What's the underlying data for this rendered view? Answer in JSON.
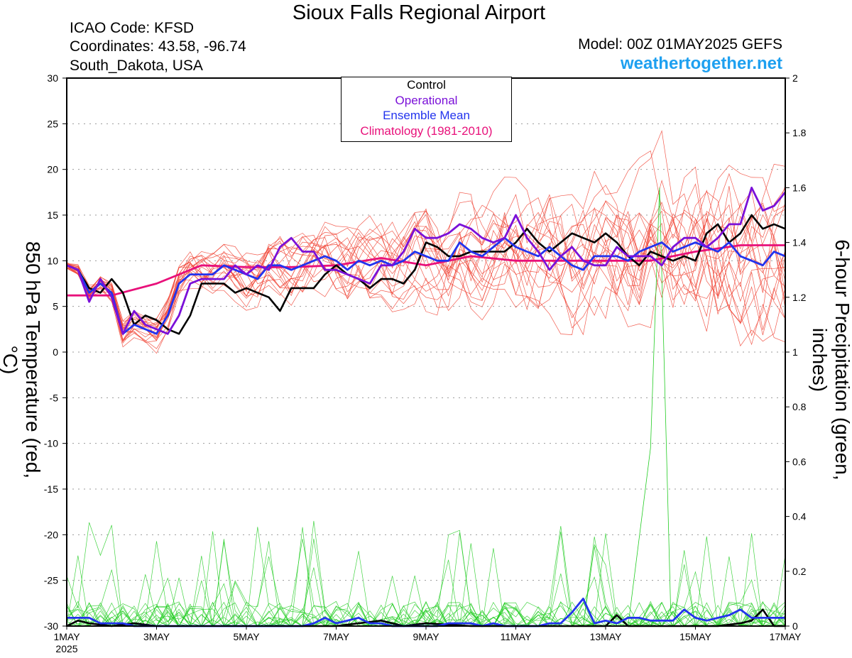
{
  "header": {
    "title": "Sioux Falls Regional Airport",
    "icao": "ICAO Code: KFSD",
    "coords": "Coordinates: 43.58, -96.74",
    "region": "South_Dakota, USA",
    "model": "Model: 00Z 01MAY2025 GEFS",
    "site": "weathertogether.net"
  },
  "colors": {
    "control": "#000000",
    "operational": "#7a10d8",
    "ensemble_mean": "#2233ee",
    "climatology": "#e8107a",
    "members_temp": "#f04030",
    "members_precip": "#22cc22",
    "site": "#1ea0f0"
  },
  "chart_data": {
    "type": "line",
    "title": "Sioux Falls Regional Airport",
    "ylabel": "850 hPa Temperature (red, °C)",
    "y2label": "6-hour Precipitation (green, inches)",
    "ylim": [
      -30,
      30
    ],
    "y2lim": [
      0,
      2
    ],
    "grid": true,
    "legend_position": "top-center",
    "x_ticks": [
      {
        "day": 0,
        "label": "1MAY",
        "sub": "2025"
      },
      {
        "day": 2,
        "label": "3MAY"
      },
      {
        "day": 4,
        "label": "5MAY"
      },
      {
        "day": 6,
        "label": "7MAY"
      },
      {
        "day": 8,
        "label": "9MAY"
      },
      {
        "day": 10,
        "label": "11MAY"
      },
      {
        "day": 12,
        "label": "13MAY"
      },
      {
        "day": 14,
        "label": "15MAY"
      },
      {
        "day": 16,
        "label": "17MAY"
      }
    ],
    "y_ticks": [
      "-30",
      "-25",
      "-20",
      "-15",
      "-10",
      "-5",
      "0",
      "5",
      "10",
      "15",
      "20",
      "25",
      "30"
    ],
    "y2_ticks": [
      "0",
      "0.2",
      "0.4",
      "0.6",
      "0.8",
      "1",
      "1.2",
      "1.4",
      "1.6",
      "1.8",
      "2"
    ],
    "legend": [
      "Control",
      "Operational",
      "Ensemble Mean",
      "Climatology (1981-2010)"
    ],
    "series": [
      {
        "name": "Control",
        "axis": "temp",
        "x": [
          0,
          0.25,
          0.5,
          0.75,
          1,
          1.25,
          1.5,
          1.75,
          2,
          2.25,
          2.5,
          2.75,
          3,
          3.25,
          3.5,
          3.75,
          4,
          4.25,
          4.5,
          4.75,
          5,
          5.25,
          5.5,
          5.75,
          6,
          6.25,
          6.5,
          6.75,
          7,
          7.25,
          7.5,
          7.75,
          8,
          8.25,
          8.5,
          8.75,
          9,
          9.25,
          9.5,
          9.75,
          10,
          10.25,
          10.5,
          10.75,
          11,
          11.25,
          11.5,
          11.75,
          12,
          12.25,
          12.5,
          12.75,
          13,
          13.25,
          13.5,
          13.75,
          14,
          14.25,
          14.5,
          14.75,
          15,
          15.25,
          15.5,
          15.75,
          16
        ],
        "y": [
          9.5,
          9,
          7,
          6.5,
          8,
          6.5,
          3,
          4,
          3.5,
          2.5,
          2,
          4,
          7.5,
          7.5,
          7.5,
          6.5,
          7,
          6.5,
          6,
          4.5,
          7,
          7,
          7,
          8.5,
          9.5,
          8.5,
          8,
          7,
          8,
          8,
          7.5,
          9,
          12,
          11.5,
          10.5,
          10.5,
          11,
          11,
          11,
          11,
          12,
          13.5,
          12,
          11,
          12,
          13,
          12.5,
          12,
          13,
          12,
          10.5,
          9.5,
          11,
          10.5,
          10,
          10.5,
          10,
          13,
          14,
          12,
          13,
          15,
          13.5,
          14,
          13.5
        ]
      },
      {
        "name": "Operational",
        "axis": "temp",
        "x": [
          0,
          0.25,
          0.5,
          0.75,
          1,
          1.25,
          1.5,
          1.75,
          2,
          2.25,
          2.5,
          2.75,
          3,
          3.25,
          3.5,
          3.75,
          4,
          4.25,
          4.5,
          4.75,
          5,
          5.25,
          5.5,
          5.75,
          6,
          6.25,
          6.5,
          6.75,
          7,
          7.25,
          7.5,
          7.75,
          8,
          8.25,
          8.5,
          8.75,
          9,
          9.25,
          9.5,
          9.75,
          10,
          10.25,
          10.5,
          10.75,
          11,
          11.25,
          11.5,
          11.75,
          12,
          12.25,
          12.5,
          12.75,
          13,
          13.25,
          13.5,
          13.75,
          14,
          14.25,
          14.5,
          14.75,
          15,
          15.25,
          15.5,
          15.75,
          16
        ],
        "y": [
          9.5,
          9,
          5.5,
          8,
          6,
          2,
          4.5,
          3,
          2.5,
          2,
          4,
          7.5,
          8,
          8,
          8,
          9.5,
          8.5,
          9.5,
          9,
          11.5,
          12.5,
          11,
          11,
          9,
          9,
          8.5,
          8,
          7.5,
          9.5,
          9.5,
          11,
          13.5,
          12.5,
          12.5,
          13,
          14,
          13.5,
          12.5,
          12,
          12.5,
          15,
          12.5,
          11,
          9,
          10.5,
          11.5,
          10,
          9.5,
          9.5,
          11.5,
          10.5,
          10.5,
          10.5,
          9.5,
          11.5,
          12.5,
          12.5,
          11.5,
          12.5,
          14,
          14,
          18,
          15.5,
          16,
          17.5
        ]
      },
      {
        "name": "Ensemble Mean",
        "axis": "temp",
        "x": [
          0,
          0.25,
          0.5,
          0.75,
          1,
          1.25,
          1.5,
          1.75,
          2,
          2.25,
          2.5,
          2.75,
          3,
          3.25,
          3.5,
          3.75,
          4,
          4.25,
          4.5,
          4.75,
          5,
          5.25,
          5.5,
          5.75,
          6,
          6.25,
          6.5,
          6.75,
          7,
          7.25,
          7.5,
          7.75,
          8,
          8.25,
          8.5,
          8.75,
          9,
          9.25,
          9.5,
          9.75,
          10,
          10.25,
          10.5,
          10.75,
          11,
          11.25,
          11.5,
          11.75,
          12,
          12.25,
          12.5,
          12.75,
          13,
          13.25,
          13.5,
          13.75,
          14,
          14.25,
          14.5,
          14.75,
          15,
          15.25,
          15.5,
          15.75,
          16
        ],
        "y": [
          9.5,
          9,
          6.5,
          7.5,
          6.5,
          2,
          3,
          2.5,
          2,
          4,
          7.5,
          8.5,
          8.5,
          8.5,
          9.5,
          9,
          8.5,
          8,
          9.5,
          9.5,
          9,
          9.5,
          10,
          10.5,
          10,
          9,
          10,
          9.5,
          10,
          9.5,
          10,
          11,
          10.5,
          10,
          10,
          12,
          11,
          10.5,
          11.5,
          12.5,
          11.5,
          11,
          10.5,
          11.5,
          10.5,
          9.5,
          9,
          10.5,
          10.5,
          10.5,
          10,
          11,
          11.5,
          12,
          11,
          11.5,
          12,
          11.5,
          11,
          12,
          10.5,
          10,
          9.5,
          11,
          10.5
        ]
      },
      {
        "name": "Climatology (1981-2010)",
        "axis": "temp",
        "x": [
          0,
          1,
          2,
          3,
          4,
          5,
          6,
          7,
          8,
          9,
          10,
          11,
          12,
          13,
          14,
          15,
          16
        ],
        "y": [
          6.2,
          6.2,
          7.5,
          9.5,
          9.3,
          9.3,
          9.5,
          10.3,
          9.5,
          10.5,
          10,
          10,
          10,
          10,
          11,
          11.7,
          11.7
        ]
      },
      {
        "name": "Control",
        "axis": "precip",
        "x": [
          0,
          0.25,
          0.5,
          1,
          1.5,
          2,
          3,
          4,
          5,
          6,
          6.5,
          7,
          7.5,
          8,
          9,
          10,
          11,
          11.5,
          12,
          12.25,
          12.5,
          13,
          13.5,
          14,
          14.5,
          15,
          15.25,
          15.5,
          15.75,
          16
        ],
        "y": [
          0,
          0.02,
          0.01,
          0,
          0.01,
          0,
          0,
          0,
          0,
          0,
          0.01,
          0.02,
          0,
          0.01,
          0,
          0,
          0,
          0,
          0,
          0.04,
          0,
          0,
          0,
          0,
          0,
          0.01,
          0.02,
          0.06,
          0,
          0
        ]
      },
      {
        "name": "Ensemble Mean",
        "axis": "precip",
        "x": [
          0,
          0.25,
          0.5,
          0.75,
          1,
          1.25,
          1.5,
          1.75,
          2,
          2.25,
          2.5,
          2.75,
          3,
          3.25,
          3.5,
          3.75,
          4,
          4.25,
          4.5,
          4.75,
          5,
          5.25,
          5.5,
          5.75,
          6,
          6.25,
          6.5,
          6.75,
          7,
          7.25,
          7.5,
          7.75,
          8,
          8.25,
          8.5,
          8.75,
          9,
          9.25,
          9.5,
          9.75,
          10,
          10.25,
          10.5,
          10.75,
          11,
          11.25,
          11.5,
          11.75,
          12,
          12.25,
          12.5,
          12.75,
          13,
          13.25,
          13.5,
          13.75,
          14,
          14.25,
          14.5,
          14.75,
          15,
          15.25,
          15.5,
          15.75,
          16
        ],
        "y": [
          0.03,
          0.03,
          0.03,
          0.01,
          0.01,
          0.01,
          0,
          0,
          0,
          0,
          0,
          0,
          0,
          0,
          0,
          0,
          0,
          0,
          0,
          0,
          0,
          0,
          0.01,
          0.03,
          0.01,
          0.02,
          0.03,
          0.01,
          0.01,
          0,
          0,
          0,
          0,
          0,
          0.01,
          0.01,
          0.01,
          0,
          0.01,
          0,
          0,
          0,
          0,
          0.01,
          0.01,
          0.05,
          0.1,
          0.01,
          0.02,
          0.01,
          0.03,
          0.03,
          0.02,
          0.02,
          0.02,
          0.06,
          0.03,
          0.02,
          0.03,
          0.04,
          0.06,
          0.03,
          0.03,
          0.03,
          0.03
        ]
      }
    ]
  }
}
